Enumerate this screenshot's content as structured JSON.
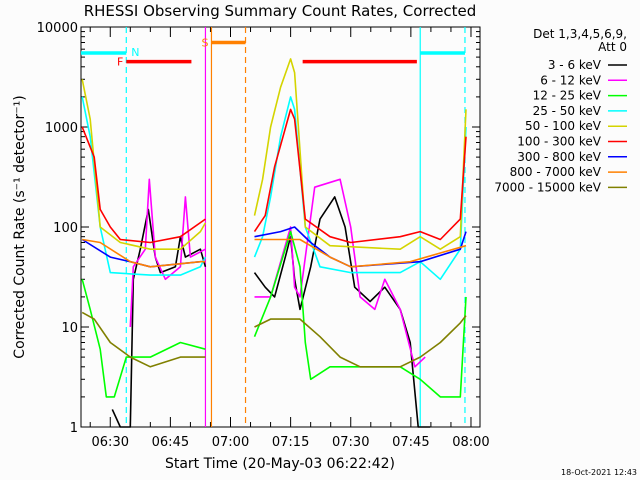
{
  "chart_data": {
    "type": "line",
    "title": "RHESSI Observing Summary Count Rates, Corrected",
    "xlabel": "Start Time (20-May-03 06:22:42)",
    "ylabel": "Corrected Count Rate (s⁻¹ detector⁻¹)",
    "ylog": true,
    "ylim": [
      1,
      10000
    ],
    "xlim": [
      "06:22:42",
      "08:02:15"
    ],
    "xticks": [
      "06:30",
      "06:45",
      "07:00",
      "07:15",
      "07:30",
      "07:45",
      "08:00"
    ],
    "yticks": [
      "1",
      "10",
      "100",
      "1000",
      "10000"
    ],
    "footer": "18-Oct-2021 12:43",
    "legend": {
      "placement": "right",
      "header": [
        "Det 1,3,4,5,6,9,",
        "Att 0"
      ]
    },
    "series": [
      {
        "name": "3 - 6 keV",
        "color": "#000000",
        "segments": [
          [
            [
              "06:30:30",
              1.5
            ],
            [
              "06:32:30",
              1
            ],
            [
              "06:35",
              1
            ],
            [
              "06:35:45",
              30
            ],
            [
              "06:37:30",
              60
            ],
            [
              "06:39:30",
              150
            ],
            [
              "06:41:15",
              50
            ],
            [
              "06:42:30",
              35
            ],
            [
              "06:46:15",
              40
            ],
            [
              "06:47:30",
              80
            ],
            [
              "06:48:45",
              50
            ],
            [
              "06:52:30",
              60
            ],
            [
              "06:53:45",
              40
            ]
          ],
          [
            [
              "07:06",
              35
            ],
            [
              "07:08:40",
              25
            ],
            [
              "07:11",
              20
            ],
            [
              "07:13:40",
              50
            ],
            [
              "07:15",
              80
            ],
            [
              "07:16",
              30
            ],
            [
              "07:17:20",
              15
            ],
            [
              "07:20",
              40
            ],
            [
              "07:22:20",
              120
            ],
            [
              "07:26",
              200
            ],
            [
              "07:28:35",
              100
            ],
            [
              "07:31",
              25
            ],
            [
              "07:34:50",
              18
            ],
            [
              "07:38:30",
              25
            ],
            [
              "07:42:20",
              15
            ],
            [
              "07:44:50",
              7
            ],
            [
              "07:46:50",
              1
            ],
            [
              "07:49:50",
              1
            ]
          ]
        ]
      },
      {
        "name": "6 - 12 keV",
        "color": "#ff00ff",
        "segments": [
          [
            [
              "06:35",
              10
            ],
            [
              "06:35:45",
              40
            ],
            [
              "06:38:45",
              60
            ],
            [
              "06:39:45",
              300
            ],
            [
              "06:41:15",
              50
            ],
            [
              "06:43:45",
              30
            ],
            [
              "06:47:30",
              40
            ],
            [
              "06:48:45",
              200
            ],
            [
              "06:50",
              50
            ],
            [
              "06:53:45",
              60
            ]
          ],
          [
            [
              "07:06",
              20
            ],
            [
              "07:10",
              20
            ],
            [
              "07:15",
              100
            ],
            [
              "07:16",
              25
            ],
            [
              "07:17:20",
              20
            ],
            [
              "07:21",
              250
            ],
            [
              "07:27:20",
              300
            ],
            [
              "07:30",
              100
            ],
            [
              "07:32:20",
              20
            ],
            [
              "07:36",
              15
            ],
            [
              "07:38:30",
              30
            ],
            [
              "07:42:20",
              15
            ],
            [
              "07:46",
              4
            ],
            [
              "07:48:35",
              5
            ]
          ]
        ]
      },
      {
        "name": "12 - 25 keV",
        "color": "#00ff00",
        "segments": [
          [
            [
              "06:23",
              30
            ],
            [
              "06:25",
              15
            ],
            [
              "06:27:30",
              6
            ],
            [
              "06:29",
              2
            ],
            [
              "06:31",
              2
            ],
            [
              "06:34",
              5
            ],
            [
              "06:40",
              5
            ],
            [
              "06:47:30",
              7
            ],
            [
              "06:53:45",
              6
            ]
          ],
          [
            [
              "07:06",
              8
            ],
            [
              "07:10",
              20
            ],
            [
              "07:15",
              90
            ],
            [
              "07:17:20",
              40
            ],
            [
              "07:18:40",
              7
            ],
            [
              "07:20",
              3
            ],
            [
              "07:24:50",
              4
            ],
            [
              "07:30",
              4
            ],
            [
              "07:42:20",
              4
            ],
            [
              "07:47:20",
              3
            ],
            [
              "07:52:20",
              2
            ],
            [
              "07:57:20",
              2
            ],
            [
              "07:58:45",
              20
            ]
          ]
        ]
      },
      {
        "name": "25 - 50 keV",
        "color": "#00ffff",
        "segments": [
          [
            [
              "06:23",
              2000
            ],
            [
              "06:25",
              800
            ],
            [
              "06:27:30",
              100
            ],
            [
              "06:30",
              35
            ],
            [
              "06:40",
              33
            ],
            [
              "06:47:30",
              33
            ],
            [
              "06:52:30",
              40
            ],
            [
              "06:53:45",
              50
            ]
          ],
          [
            [
              "07:06",
              50
            ],
            [
              "07:08",
              80
            ],
            [
              "07:10",
              200
            ],
            [
              "07:12:30",
              800
            ],
            [
              "07:15",
              2000
            ],
            [
              "07:16",
              1500
            ],
            [
              "07:18:40",
              100
            ],
            [
              "07:22:20",
              40
            ],
            [
              "07:30",
              35
            ],
            [
              "07:42:20",
              35
            ],
            [
              "07:47:20",
              45
            ],
            [
              "07:52:20",
              30
            ],
            [
              "07:57:20",
              60
            ],
            [
              "07:58:45",
              1000
            ]
          ]
        ]
      },
      {
        "name": "50 - 100 keV",
        "color": "#d4d400",
        "segments": [
          [
            [
              "06:23",
              3000
            ],
            [
              "06:25",
              1200
            ],
            [
              "06:27:30",
              100
            ],
            [
              "06:32:30",
              70
            ],
            [
              "06:40",
              60
            ],
            [
              "06:47:30",
              60
            ],
            [
              "06:52:30",
              90
            ],
            [
              "06:53:45",
              110
            ]
          ],
          [
            [
              "07:06",
              130
            ],
            [
              "07:08",
              300
            ],
            [
              "07:10",
              1000
            ],
            [
              "07:12:30",
              2500
            ],
            [
              "07:15",
              4800
            ],
            [
              "07:16",
              3500
            ],
            [
              "07:18:40",
              100
            ],
            [
              "07:24:50",
              65
            ],
            [
              "07:42:20",
              60
            ],
            [
              "07:47:20",
              80
            ],
            [
              "07:52:20",
              60
            ],
            [
              "07:57:20",
              80
            ],
            [
              "07:58:45",
              1500
            ]
          ]
        ]
      },
      {
        "name": "100 - 300 keV",
        "color": "#ff0000",
        "segments": [
          [
            [
              "06:23",
              1000
            ],
            [
              "06:26",
              500
            ],
            [
              "06:27:30",
              150
            ],
            [
              "06:30",
              100
            ],
            [
              "06:32:30",
              75
            ],
            [
              "06:40",
              70
            ],
            [
              "06:47:30",
              80
            ],
            [
              "06:53:45",
              120
            ]
          ],
          [
            [
              "07:06",
              90
            ],
            [
              "07:08:40",
              130
            ],
            [
              "07:11",
              400
            ],
            [
              "07:15",
              1500
            ],
            [
              "07:16",
              1200
            ],
            [
              "07:18:40",
              120
            ],
            [
              "07:24:50",
              80
            ],
            [
              "07:30",
              70
            ],
            [
              "07:42:20",
              80
            ],
            [
              "07:47:20",
              90
            ],
            [
              "07:52:20",
              75
            ],
            [
              "07:57:20",
              120
            ],
            [
              "07:58:45",
              800
            ]
          ]
        ]
      },
      {
        "name": "300 - 800 keV",
        "color": "#0000ff",
        "segments": [
          [
            [
              "06:23",
              75
            ],
            [
              "06:30",
              50
            ],
            [
              "06:35",
              45
            ],
            [
              "06:40",
              40
            ],
            [
              "06:52:30",
              45
            ],
            [
              "06:53:45",
              45
            ]
          ],
          [
            [
              "07:06",
              80
            ],
            [
              "07:12:30",
              90
            ],
            [
              "07:16",
              100
            ],
            [
              "07:20",
              70
            ],
            [
              "07:24:50",
              50
            ],
            [
              "07:30",
              40
            ],
            [
              "07:47:20",
              45
            ],
            [
              "07:57:20",
              60
            ],
            [
              "07:58:45",
              90
            ]
          ]
        ]
      },
      {
        "name": "800 - 7000 keV",
        "color": "#ff8000",
        "segments": [
          [
            [
              "06:23",
              75
            ],
            [
              "06:27:30",
              70
            ],
            [
              "06:35",
              45
            ],
            [
              "06:40",
              40
            ],
            [
              "06:52:30",
              45
            ],
            [
              "06:53:45",
              45
            ]
          ],
          [
            [
              "07:06",
              75
            ],
            [
              "07:17:20",
              75
            ],
            [
              "07:24:50",
              50
            ],
            [
              "07:30",
              40
            ],
            [
              "07:44:50",
              45
            ],
            [
              "07:52:20",
              55
            ],
            [
              "07:58:45",
              65
            ]
          ]
        ]
      },
      {
        "name": "7000 - 15000 keV",
        "color": "#808000",
        "segments": [
          [
            [
              "06:23",
              14
            ],
            [
              "06:26",
              12
            ],
            [
              "06:30",
              7
            ],
            [
              "06:35",
              5
            ],
            [
              "06:40",
              4
            ],
            [
              "06:47:30",
              5
            ],
            [
              "06:53:45",
              5
            ]
          ],
          [
            [
              "07:06",
              10
            ],
            [
              "07:10",
              12
            ],
            [
              "07:17:20",
              12
            ],
            [
              "07:22:20",
              8
            ],
            [
              "07:27:20",
              5
            ],
            [
              "07:32:20",
              4
            ],
            [
              "07:42:20",
              4
            ],
            [
              "07:47:20",
              5
            ],
            [
              "07:52:20",
              7
            ],
            [
              "07:57:20",
              11
            ],
            [
              "07:58:45",
              13
            ]
          ]
        ]
      }
    ],
    "annotations": {
      "bars": [
        {
          "label": "N",
          "color": "#00ffff",
          "from": "06:22:42",
          "to": "06:34",
          "level": 5500,
          "label_at": "end"
        },
        {
          "label": "",
          "color": "#00ffff",
          "from": "07:47:20",
          "to": "07:58:30",
          "level": 5500
        },
        {
          "label": "F",
          "color": "#ff0000",
          "from": "06:34",
          "to": "06:50:15",
          "level": 4500,
          "label_at": "start"
        },
        {
          "label": "",
          "color": "#ff0000",
          "from": "07:18",
          "to": "07:46:30",
          "level": 4500
        },
        {
          "label": "S",
          "color": "#ff8000",
          "from": "06:55:15",
          "to": "07:03:45",
          "level": 7000,
          "label_at": "start"
        }
      ],
      "vlines": [
        {
          "time": "06:34",
          "color": "#00ffff",
          "style": "dashed"
        },
        {
          "time": "06:53:45",
          "color": "#ff00ff",
          "style": "solid"
        },
        {
          "time": "06:55:15",
          "color": "#ff8000",
          "style": "solid"
        },
        {
          "time": "07:03:45",
          "color": "#ff8000",
          "style": "dashed"
        },
        {
          "time": "07:47:20",
          "color": "#00ffff",
          "style": "solid"
        },
        {
          "time": "07:58:30",
          "color": "#00ffff",
          "style": "dashed"
        }
      ]
    }
  }
}
